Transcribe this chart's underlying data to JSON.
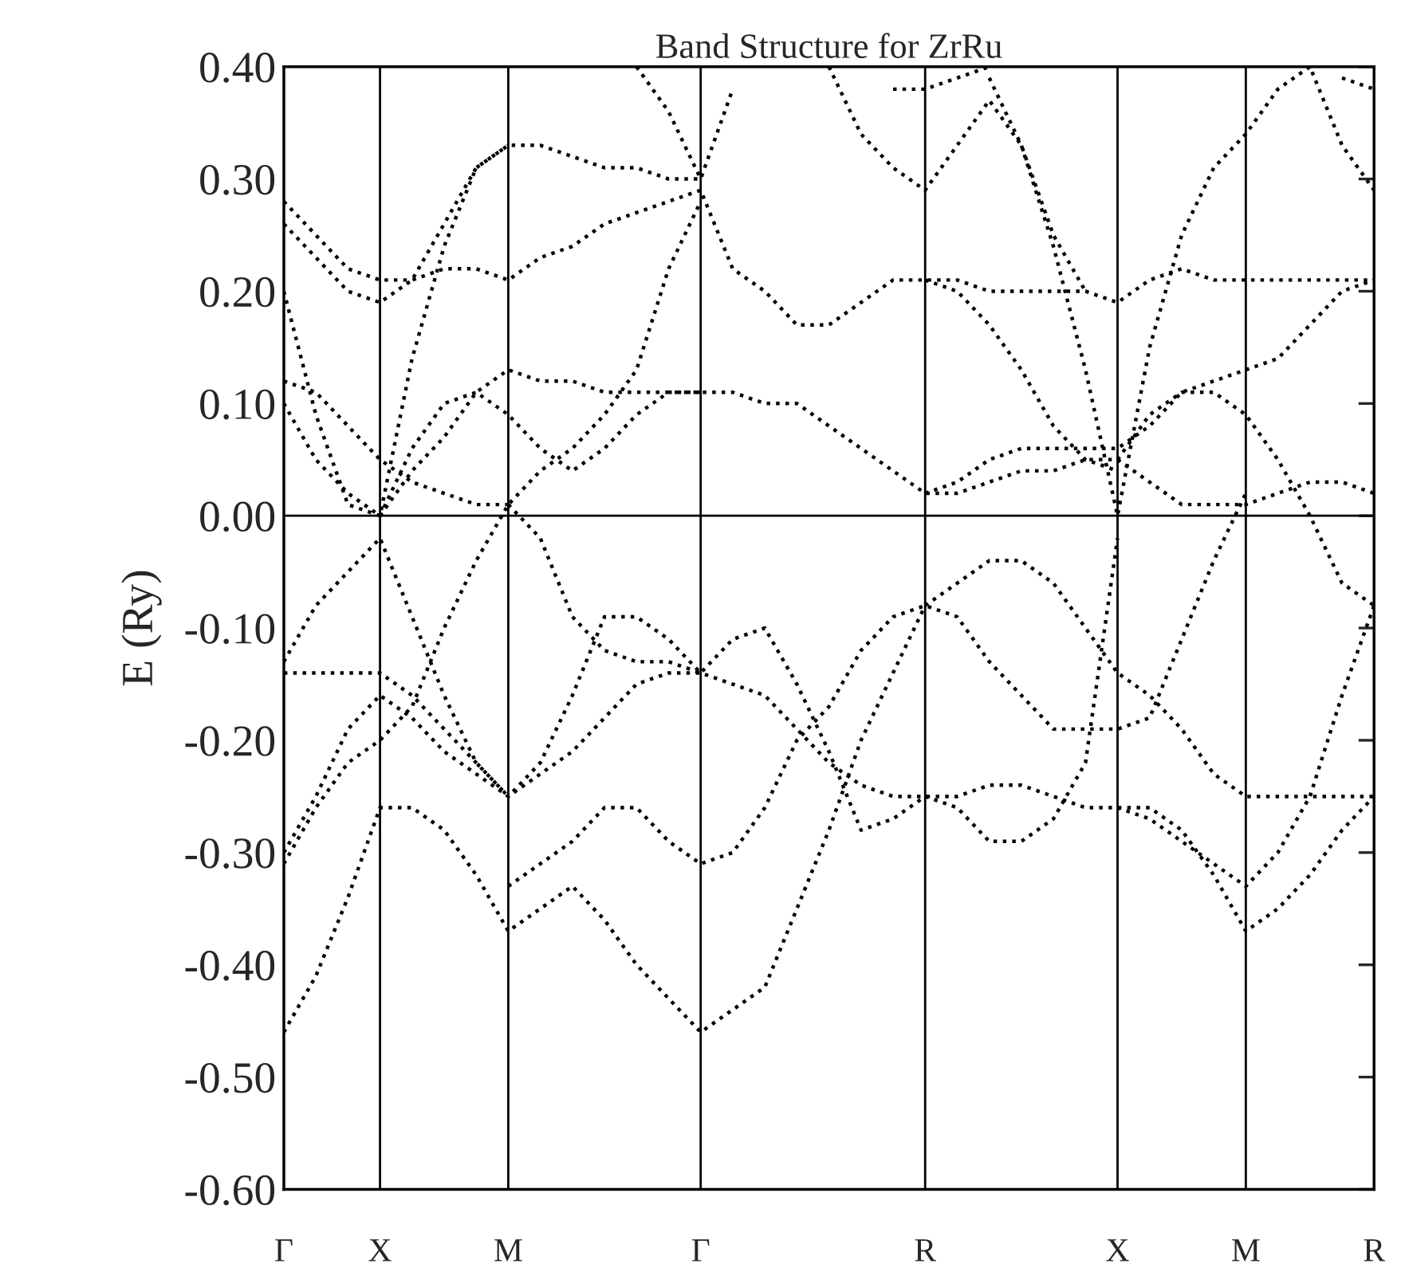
{
  "chart_data": {
    "type": "line",
    "title": "Band Structure for ZrRu",
    "ylabel": "E (Ry)",
    "categories": [
      "Γ",
      null,
      null,
      "X",
      null,
      null,
      null,
      "M",
      null,
      null,
      null,
      null,
      null,
      "Γ",
      null,
      null,
      null,
      null,
      null,
      null,
      "R",
      null,
      null,
      null,
      null,
      null,
      "X",
      null,
      null,
      null,
      "M",
      null,
      null,
      null,
      "R"
    ],
    "ylim": [
      -0.6,
      0.4
    ],
    "yticks": [
      {
        "value": 0.4,
        "label": "0.40"
      },
      {
        "value": 0.3,
        "label": "0.30"
      },
      {
        "value": 0.2,
        "label": "0.20"
      },
      {
        "value": 0.1,
        "label": "0.10"
      },
      {
        "value": 0,
        "label": "0.00"
      },
      {
        "value": -0.1,
        "label": "-0.10"
      },
      {
        "value": -0.2,
        "label": "-0.20"
      },
      {
        "value": -0.3,
        "label": "-0.30"
      },
      {
        "value": -0.4,
        "label": "-0.40"
      },
      {
        "value": -0.5,
        "label": "-0.50"
      },
      {
        "value": -0.6,
        "label": "-0.60"
      }
    ],
    "ref_lines": [
      {
        "axis": "y",
        "value": 0,
        "color": "#000000"
      }
    ],
    "grid": "x",
    "legend": false,
    "marker": "none",
    "line_style": "dotted",
    "series": [
      {
        "color": "#000000",
        "values": [
          -0.46,
          -0.41,
          -0.34,
          -0.26,
          -0.26,
          -0.28,
          -0.32,
          -0.37,
          -0.35,
          -0.33,
          -0.36,
          -0.4,
          -0.43,
          -0.46,
          -0.44,
          -0.42,
          -0.35,
          -0.28,
          -0.2,
          -0.14,
          -0.08,
          -0.06,
          -0.04,
          -0.04,
          -0.06,
          -0.1,
          -0.14,
          -0.16,
          -0.19,
          -0.23,
          -0.25,
          -0.25,
          -0.25,
          -0.25,
          -0.25
        ]
      },
      {
        "color": "#000000",
        "values": [
          -0.31,
          -0.26,
          -0.22,
          -0.2,
          -0.17,
          -0.1,
          -0.04,
          0.01,
          0.04,
          0.06,
          0.09,
          0.13,
          0.22,
          0.28,
          null,
          null,
          null,
          null,
          null,
          null,
          null,
          null,
          null,
          null,
          null,
          null,
          null,
          null,
          null,
          null,
          null,
          null,
          null,
          null,
          null
        ]
      },
      {
        "color": "#000000",
        "values": [
          -0.3,
          -0.25,
          -0.19,
          -0.16,
          -0.18,
          -0.21,
          -0.23,
          -0.25,
          -0.23,
          -0.21,
          -0.18,
          -0.15,
          -0.14,
          -0.14,
          -0.15,
          -0.16,
          -0.19,
          -0.22,
          -0.24,
          -0.25,
          -0.25,
          -0.25,
          -0.24,
          -0.24,
          -0.25,
          -0.26,
          -0.26,
          -0.26,
          -0.28,
          -0.32,
          -0.37,
          -0.35,
          -0.32,
          -0.28,
          -0.25
        ]
      },
      {
        "color": "#000000",
        "values": [
          -0.14,
          -0.14,
          -0.14,
          -0.14,
          -0.16,
          -0.19,
          -0.22,
          -0.25,
          -0.22,
          -0.16,
          -0.09,
          -0.09,
          -0.11,
          -0.14,
          -0.11,
          -0.1,
          -0.15,
          -0.21,
          -0.28,
          -0.27,
          -0.25,
          -0.26,
          -0.29,
          -0.29,
          -0.27,
          -0.22,
          -0.02,
          null,
          null,
          null,
          null,
          null,
          null,
          null,
          null
        ]
      },
      {
        "color": "#000000",
        "values": [
          -0.13,
          -0.08,
          -0.05,
          -0.02,
          -0.09,
          -0.16,
          -0.22,
          -0.25,
          null,
          null,
          null,
          null,
          null,
          null,
          null,
          null,
          null,
          null,
          null,
          null,
          null,
          null,
          null,
          null,
          null,
          null,
          null,
          null,
          null,
          null,
          null,
          null,
          null,
          null,
          null
        ]
      },
      {
        "color": "#000000",
        "values": [
          null,
          null,
          null,
          null,
          null,
          null,
          null,
          -0.33,
          -0.31,
          -0.29,
          -0.26,
          -0.26,
          -0.29,
          -0.31,
          -0.3,
          -0.26,
          -0.2,
          -0.17,
          -0.12,
          -0.09,
          -0.08,
          -0.09,
          -0.13,
          -0.16,
          -0.19,
          -0.19,
          -0.19,
          -0.18,
          -0.11,
          -0.04,
          0.02,
          null,
          null,
          null,
          null
        ]
      },
      {
        "color": "#000000",
        "values": [
          null,
          null,
          null,
          null,
          null,
          null,
          null,
          0.01,
          -0.02,
          -0.09,
          -0.12,
          -0.13,
          -0.13,
          -0.14,
          null,
          null,
          null,
          null,
          null,
          null,
          null,
          null,
          null,
          null,
          null,
          null,
          null,
          null,
          null,
          null,
          null,
          null,
          null,
          null,
          null
        ]
      },
      {
        "color": "#000000",
        "values": [
          null,
          null,
          null,
          null,
          null,
          null,
          null,
          null,
          null,
          null,
          null,
          null,
          null,
          null,
          null,
          null,
          null,
          null,
          null,
          null,
          null,
          null,
          null,
          null,
          null,
          null,
          -0.26,
          -0.27,
          -0.29,
          -0.31,
          -0.33,
          -0.3,
          -0.25,
          -0.16,
          -0.08
        ]
      },
      {
        "color": "#000000",
        "values": [
          0.28,
          0.25,
          0.22,
          0.21,
          0.21,
          0.22,
          0.22,
          0.21,
          0.23,
          0.24,
          0.26,
          0.27,
          0.28,
          0.29,
          0.22,
          0.2,
          0.17,
          0.17,
          0.19,
          0.21,
          0.21,
          0.21,
          0.2,
          0.2,
          0.2,
          0.2,
          0.19,
          0.21,
          0.22,
          0.21,
          0.21,
          0.21,
          0.21,
          0.21,
          0.21
        ]
      },
      {
        "color": "#000000",
        "values": [
          0.26,
          0.23,
          0.2,
          0.19,
          0.21,
          0.26,
          0.31,
          0.33,
          0.33,
          0.32,
          0.31,
          0.31,
          0.3,
          0.3,
          0.38,
          null,
          null,
          null,
          null,
          null,
          null,
          null,
          null,
          null,
          null,
          null,
          null,
          null,
          null,
          null,
          null,
          null,
          null,
          null,
          null
        ]
      },
      {
        "color": "#000000",
        "values": [
          0.2,
          0.09,
          0.01,
          0.0,
          0.14,
          0.24,
          0.31,
          0.33,
          null,
          null,
          null,
          null,
          null,
          null,
          null,
          null,
          null,
          null,
          null,
          null,
          null,
          null,
          null,
          null,
          null,
          null,
          null,
          null,
          null,
          null,
          null,
          null,
          null,
          null,
          null
        ]
      },
      {
        "color": "#000000",
        "values": [
          0.12,
          0.11,
          0.08,
          0.05,
          0.03,
          0.02,
          0.01,
          0.01,
          null,
          null,
          null,
          null,
          null,
          null,
          null,
          null,
          null,
          null,
          null,
          null,
          null,
          null,
          null,
          null,
          null,
          null,
          null,
          null,
          null,
          null,
          null,
          null,
          null,
          null,
          null
        ]
      },
      {
        "color": "#000000",
        "values": [
          0.1,
          0.05,
          0.02,
          0.0,
          0.06,
          0.1,
          0.11,
          0.09,
          0.06,
          0.04,
          0.06,
          0.09,
          0.11,
          0.11,
          null,
          null,
          null,
          null,
          null,
          null,
          null,
          null,
          null,
          null,
          null,
          null,
          null,
          null,
          null,
          null,
          null,
          null,
          null,
          null,
          null
        ]
      },
      {
        "color": "#000000",
        "values": [
          null,
          null,
          null,
          0.0,
          0.04,
          0.07,
          0.11,
          0.13,
          0.12,
          0.12,
          0.11,
          0.11,
          0.11,
          0.11,
          0.11,
          0.1,
          0.1,
          0.08,
          0.06,
          0.04,
          0.02,
          0.02,
          0.03,
          0.04,
          0.04,
          0.05,
          0.05,
          0.03,
          0.01,
          0.01,
          0.01,
          0.02,
          0.03,
          0.03,
          0.02
        ]
      },
      {
        "color": "#000000",
        "values": [
          null,
          null,
          null,
          null,
          null,
          null,
          null,
          null,
          null,
          null,
          null,
          null,
          null,
          null,
          null,
          null,
          null,
          null,
          null,
          null,
          0.02,
          0.03,
          0.05,
          0.06,
          0.06,
          0.06,
          0.06,
          0.08,
          0.11,
          0.12,
          0.13,
          0.14,
          0.17,
          0.2,
          0.21
        ]
      },
      {
        "color": "#000000",
        "values": [
          null,
          null,
          null,
          null,
          null,
          null,
          null,
          null,
          null,
          null,
          null,
          null,
          null,
          null,
          null,
          null,
          null,
          null,
          null,
          null,
          null,
          null,
          null,
          null,
          null,
          null,
          0.05,
          0.09,
          0.11,
          0.11,
          0.09,
          0.05,
          0.0,
          -0.06,
          -0.08
        ]
      },
      {
        "color": "#000000",
        "values": [
          null,
          null,
          null,
          null,
          null,
          null,
          null,
          null,
          null,
          null,
          null,
          null,
          null,
          null,
          null,
          null,
          null,
          null,
          null,
          null,
          0.21,
          0.2,
          0.17,
          0.13,
          0.08,
          0.05,
          0.04,
          null,
          null,
          null,
          null,
          null,
          null,
          null,
          null
        ]
      },
      {
        "color": "#000000",
        "values": [
          null,
          null,
          null,
          null,
          null,
          null,
          null,
          null,
          null,
          null,
          null,
          null,
          null,
          null,
          null,
          null,
          null,
          null,
          null,
          null,
          null,
          null,
          0.39,
          0.33,
          0.24,
          0.13,
          0.0,
          0.15,
          0.25,
          0.31,
          0.34,
          0.38,
          0.4,
          0.33,
          0.29
        ]
      },
      {
        "color": "#000000",
        "values": [
          null,
          null,
          null,
          null,
          null,
          null,
          null,
          null,
          null,
          null,
          null,
          null,
          null,
          null,
          null,
          null,
          null,
          0.4,
          0.34,
          0.31,
          0.29,
          0.33,
          0.37,
          0.33,
          0.25,
          0.2,
          null,
          null,
          null,
          null,
          null,
          null,
          null,
          null,
          null
        ]
      },
      {
        "color": "#000000",
        "values": [
          null,
          null,
          null,
          null,
          null,
          null,
          null,
          null,
          null,
          null,
          null,
          null,
          null,
          null,
          null,
          null,
          null,
          null,
          null,
          0.38,
          0.38,
          0.39,
          0.4,
          null,
          null,
          null,
          null,
          null,
          null,
          null,
          null,
          null,
          null,
          null,
          null
        ]
      },
      {
        "color": "#000000",
        "values": [
          null,
          null,
          null,
          null,
          null,
          null,
          null,
          null,
          null,
          null,
          null,
          null,
          null,
          null,
          null,
          null,
          null,
          null,
          null,
          null,
          null,
          null,
          null,
          null,
          null,
          null,
          null,
          null,
          null,
          null,
          null,
          null,
          null,
          0.39,
          0.38
        ]
      },
      {
        "color": "#000000",
        "values": [
          null,
          null,
          null,
          null,
          null,
          null,
          null,
          null,
          null,
          null,
          null,
          0.4,
          0.36,
          0.3,
          null,
          null,
          null,
          null,
          null,
          null,
          null,
          null,
          null,
          null,
          null,
          null,
          null,
          null,
          null,
          null,
          null,
          null,
          null,
          null,
          null
        ]
      }
    ]
  }
}
